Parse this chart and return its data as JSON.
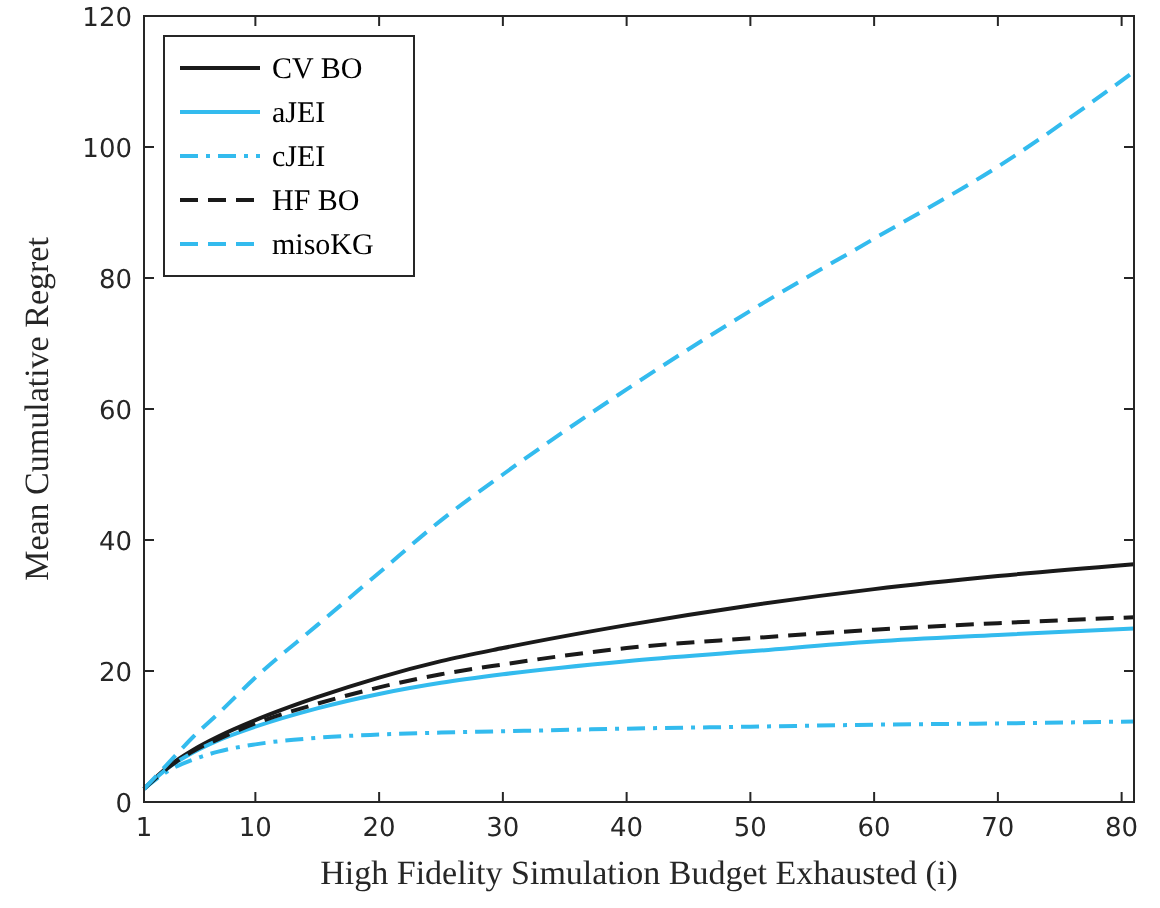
{
  "chart_data": {
    "type": "line",
    "xlabel": "High Fidelity Simulation Budget Exhausted (i)",
    "ylabel": "Mean Cumulative Regret",
    "xlim": [
      1,
      81
    ],
    "ylim": [
      0,
      120
    ],
    "xticks": [
      1,
      10,
      20,
      30,
      40,
      50,
      60,
      70,
      80
    ],
    "yticks": [
      0,
      20,
      40,
      60,
      80,
      100,
      120
    ],
    "grid": false,
    "legend": "top left",
    "x": [
      1,
      3,
      5,
      7,
      10,
      15,
      20,
      25,
      30,
      40,
      50,
      60,
      70,
      81
    ],
    "series": [
      {
        "name": "CV BO",
        "color": "#1a1a1a",
        "line_style": "solid",
        "values": [
          2,
          5.5,
          8,
          10,
          12.5,
          16,
          19,
          21.5,
          23.5,
          27,
          30,
          32.5,
          34.5,
          36.3
        ]
      },
      {
        "name": "aJEI",
        "color": "#33bbee",
        "line_style": "solid",
        "values": [
          2,
          5.3,
          7.6,
          9.4,
          11.5,
          14.3,
          16.5,
          18.2,
          19.5,
          21.5,
          23,
          24.5,
          25.5,
          26.5
        ]
      },
      {
        "name": "cJEI",
        "color": "#33bbee",
        "line_style": "dashdot",
        "values": [
          2,
          4.8,
          6.5,
          7.7,
          8.8,
          9.8,
          10.3,
          10.6,
          10.8,
          11.2,
          11.5,
          11.8,
          12,
          12.3
        ]
      },
      {
        "name": "HF BO",
        "color": "#1a1a1a",
        "line_style": "dashed",
        "values": [
          2,
          5.3,
          7.8,
          9.6,
          12,
          15,
          17.5,
          19.5,
          21,
          23.5,
          25,
          26.3,
          27.3,
          28.2
        ]
      },
      {
        "name": "misoKG",
        "color": "#33bbee",
        "line_style": "dashed",
        "values": [
          2,
          6,
          10,
          13.5,
          19,
          27,
          35,
          43,
          50,
          63,
          75,
          86,
          97,
          111.5
        ]
      }
    ]
  }
}
